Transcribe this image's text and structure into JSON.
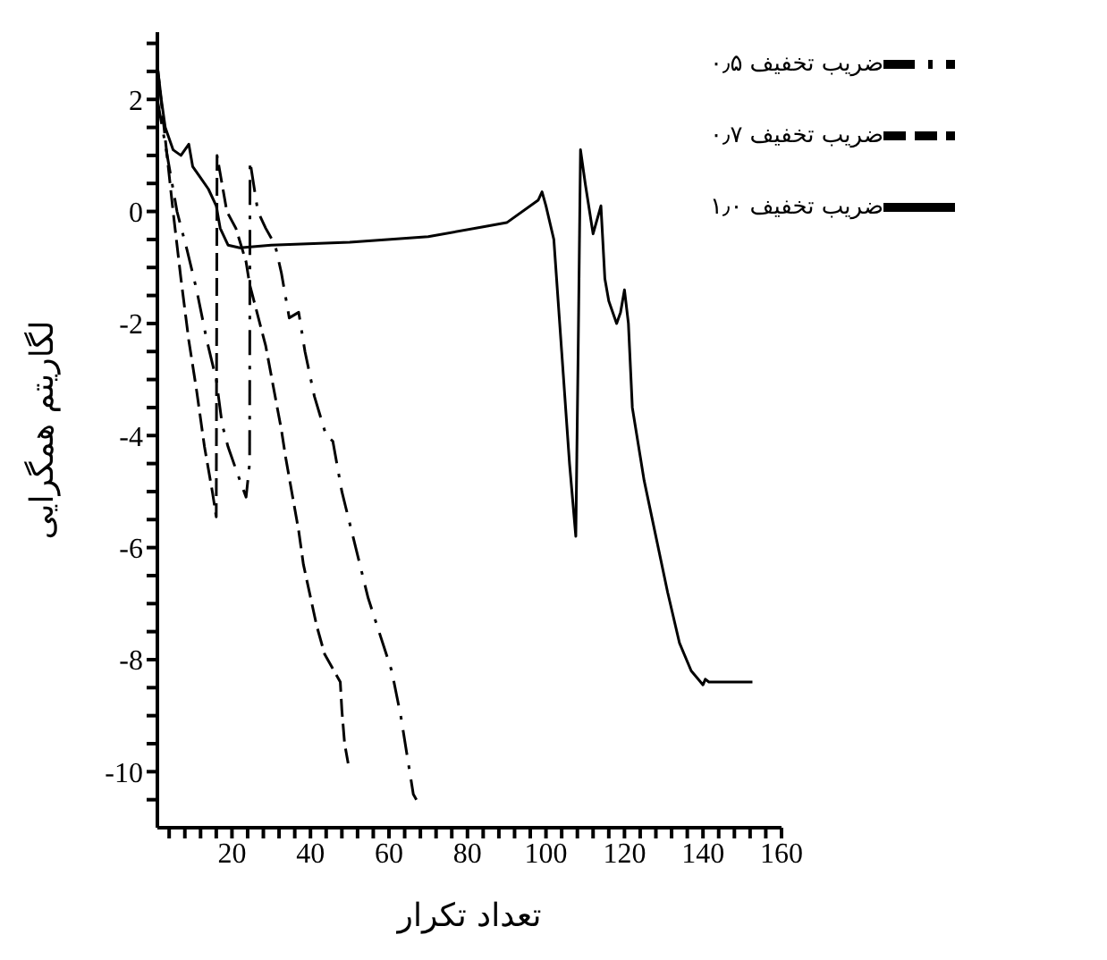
{
  "chart_data": {
    "type": "line",
    "xlabel": "تعداد تکرار",
    "ylabel": "لگاریتم همگرایی",
    "xlim": [
      1,
      160
    ],
    "ylim": [
      -11,
      3.2
    ],
    "xticks": [
      {
        "value": 4,
        "label": null
      },
      {
        "value": 8,
        "label": null
      },
      {
        "value": 12,
        "label": null
      },
      {
        "value": 16,
        "label": null
      },
      20,
      {
        "value": 24,
        "label": null
      },
      {
        "value": 28,
        "label": null
      },
      {
        "value": 32,
        "label": null
      },
      {
        "value": 36,
        "label": null
      },
      40,
      {
        "value": 44,
        "label": null
      },
      {
        "value": 48,
        "label": null
      },
      {
        "value": 52,
        "label": null
      },
      {
        "value": 56,
        "label": null
      },
      60,
      {
        "value": 64,
        "label": null
      },
      {
        "value": 68,
        "label": null
      },
      {
        "value": 72,
        "label": null
      },
      {
        "value": 76,
        "label": null
      },
      80,
      {
        "value": 84,
        "label": null
      },
      {
        "value": 88,
        "label": null
      },
      {
        "value": 92,
        "label": null
      },
      {
        "value": 96,
        "label": null
      },
      100,
      {
        "value": 104,
        "label": null
      },
      {
        "value": 108,
        "label": null
      },
      {
        "value": 112,
        "label": null
      },
      {
        "value": 116,
        "label": null
      },
      120,
      {
        "value": 124,
        "label": null
      },
      {
        "value": 128,
        "label": null
      },
      {
        "value": 132,
        "label": null
      },
      {
        "value": 136,
        "label": null
      },
      140,
      {
        "value": 144,
        "label": null
      },
      {
        "value": 148,
        "label": null
      },
      {
        "value": 152,
        "label": null
      },
      {
        "value": 156,
        "label": null
      },
      160
    ],
    "yticks": [
      {
        "value": -10.5,
        "label": null
      },
      -10,
      {
        "value": -9.5,
        "label": null
      },
      {
        "value": -9,
        "label": null
      },
      {
        "value": -8.5,
        "label": null
      },
      -8,
      {
        "value": -7.5,
        "label": null
      },
      {
        "value": -7,
        "label": null
      },
      {
        "value": -6.5,
        "label": null
      },
      -6,
      {
        "value": -5.5,
        "label": null
      },
      {
        "value": -5,
        "label": null
      },
      {
        "value": -4.5,
        "label": null
      },
      -4,
      {
        "value": -3.5,
        "label": null
      },
      {
        "value": -3,
        "label": null
      },
      {
        "value": -2.5,
        "label": null
      },
      -2,
      {
        "value": -1.5,
        "label": null
      },
      {
        "value": -1,
        "label": null
      },
      {
        "value": -0.5,
        "label": null
      },
      0,
      {
        "value": 0.5,
        "label": null
      },
      {
        "value": 1,
        "label": null
      },
      {
        "value": 1.5,
        "label": null
      },
      2,
      {
        "value": 2.5,
        "label": null
      },
      {
        "value": 3,
        "label": null
      }
    ],
    "grid": false,
    "legend": "top right",
    "marker": "none",
    "series": [
      {
        "name": "ضریب تخفیف ۰٫۷",
        "color": "#000000",
        "line_style": "dashed",
        "x": [
          1,
          3,
          5,
          7,
          9,
          11,
          13,
          15,
          16,
          16.2,
          18.7,
          21,
          23.6,
          24.5,
          28.6,
          32.6,
          33.7,
          37,
          38.2,
          41.6,
          43.6,
          47.6,
          48,
          48.7,
          49.6
        ],
        "values": [
          2.6,
          1.3,
          0,
          -1.2,
          -2.3,
          -3.2,
          -4.2,
          -5,
          -5.45,
          1,
          0,
          -0.3,
          -0.9,
          -1.3,
          -2.4,
          -3.9,
          -4.4,
          -5.7,
          -6.3,
          -7.4,
          -7.9,
          -8.4,
          -8.9,
          -9.5,
          -9.85
        ]
      },
      {
        "name": "ضریب تخفیف ۱٫۰",
        "color": "#000000",
        "line_style": "solid",
        "x": [
          1,
          2,
          3,
          5,
          7,
          9,
          10,
          12,
          14,
          16,
          17,
          19,
          22,
          30,
          50,
          70,
          90,
          98,
          99,
          100,
          102,
          104,
          106,
          107.6,
          108.2,
          108.8,
          110,
          112,
          114,
          115,
          116,
          118,
          119,
          120,
          121,
          122,
          125,
          128,
          131,
          134,
          137,
          140,
          140.6,
          141.5,
          143,
          152.6
        ],
        "values": [
          2.6,
          2,
          1.5,
          1.1,
          1,
          1.2,
          0.8,
          0.6,
          0.4,
          0.1,
          -0.3,
          -0.6,
          -0.65,
          -0.6,
          -0.55,
          -0.45,
          -0.2,
          0.2,
          0.35,
          0.1,
          -0.5,
          -2.5,
          -4.5,
          -5.8,
          -2.5,
          1.1,
          0.5,
          -0.4,
          0.1,
          -1.2,
          -1.6,
          -2,
          -1.8,
          -1.4,
          -2,
          -3.5,
          -4.8,
          -5.8,
          -6.8,
          -7.7,
          -8.2,
          -8.45,
          -8.35,
          -8.4,
          -8.4,
          -8.4
        ]
      },
      {
        "name": "ضریب تخفیف ۰٫۵",
        "color": "#000000",
        "line_style": "dashdot",
        "x": [
          1,
          3,
          6,
          8.6,
          11,
          13.6,
          16,
          17.5,
          19,
          21,
          23.6,
          24.5,
          24.6,
          26.6,
          28.6,
          31,
          32.6,
          34.6,
          37,
          38.6,
          41,
          44,
          45.7,
          48,
          51,
          54.7,
          57,
          60.7,
          63,
          66.2,
          67
        ],
        "values": [
          2,
          1.2,
          0,
          -0.7,
          -1.4,
          -2.3,
          -3,
          -3.8,
          -4.2,
          -4.6,
          -5.1,
          -4.5,
          0.9,
          0,
          -0.3,
          -0.6,
          -1.1,
          -1.9,
          -1.8,
          -2.5,
          -3.3,
          -4,
          -4.1,
          -5,
          -5.85,
          -6.9,
          -7.4,
          -8.2,
          -9,
          -10.4,
          -10.5
        ]
      }
    ]
  }
}
